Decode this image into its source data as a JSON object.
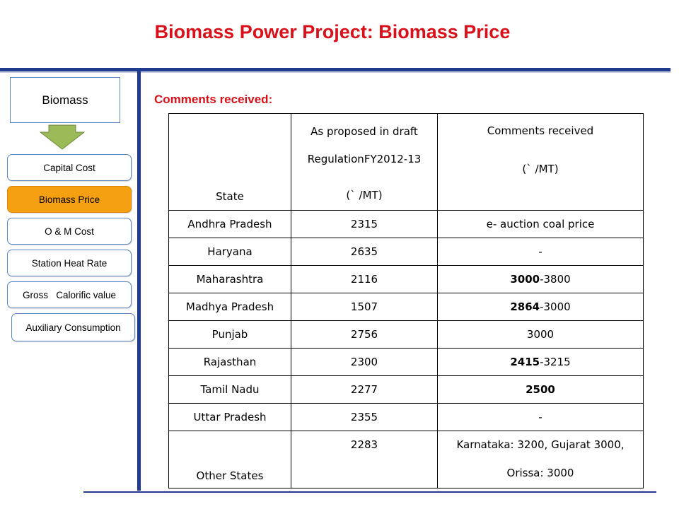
{
  "title": "Biomass Power Project: Biomass Price",
  "sidebar": {
    "top_box": "Biomass",
    "items": [
      {
        "label": "Capital Cost",
        "active": false
      },
      {
        "label": "Biomass Price",
        "active": true
      },
      {
        "label": "O & M Cost",
        "active": false
      },
      {
        "label": "Station Heat Rate",
        "active": false
      },
      {
        "label": "Gross   Calorific value",
        "active": false
      },
      {
        "label": "Auxiliary Consumption",
        "active": false
      }
    ]
  },
  "colors": {
    "title_red": "#d9101a",
    "accent_blue": "#1f3a8f",
    "active_orange": "#f5a011",
    "arrow_green": "#9bbb59"
  },
  "comments_heading": "Comments received:",
  "table": {
    "headers": {
      "state": "State",
      "draft_line1": "As proposed in draft",
      "draft_line2": "RegulationFY2012-13",
      "draft_line3": "(` /MT)",
      "comments_line1": "Comments received",
      "comments_line2": "(` /MT)"
    },
    "rows": [
      {
        "state": "Andhra Pradesh",
        "draft": "2315",
        "comment_bold": "",
        "comment_rest": "e- auction coal price"
      },
      {
        "state": "Haryana",
        "draft": "2635",
        "comment_bold": "",
        "comment_rest": "-"
      },
      {
        "state": "Maharashtra",
        "draft": "2116",
        "comment_bold": "3000",
        "comment_rest": "-3800"
      },
      {
        "state": "Madhya Pradesh",
        "draft": "1507",
        "comment_bold": "2864",
        "comment_rest": "-3000"
      },
      {
        "state": "Punjab",
        "draft": "2756",
        "comment_bold": "",
        "comment_rest": "3000"
      },
      {
        "state": "Rajasthan",
        "draft": "2300",
        "comment_bold": "2415",
        "comment_rest": "-3215"
      },
      {
        "state": "Tamil Nadu",
        "draft": "2277",
        "comment_bold": "2500",
        "comment_rest": ""
      },
      {
        "state": "Uttar Pradesh",
        "draft": "2355",
        "comment_bold": "",
        "comment_rest": "-"
      }
    ],
    "last_row": {
      "state": "Other States",
      "draft": "2283",
      "comment_line1": "Karnataka: 3200, Gujarat 3000,",
      "comment_line2": "Orissa: 3000"
    }
  }
}
